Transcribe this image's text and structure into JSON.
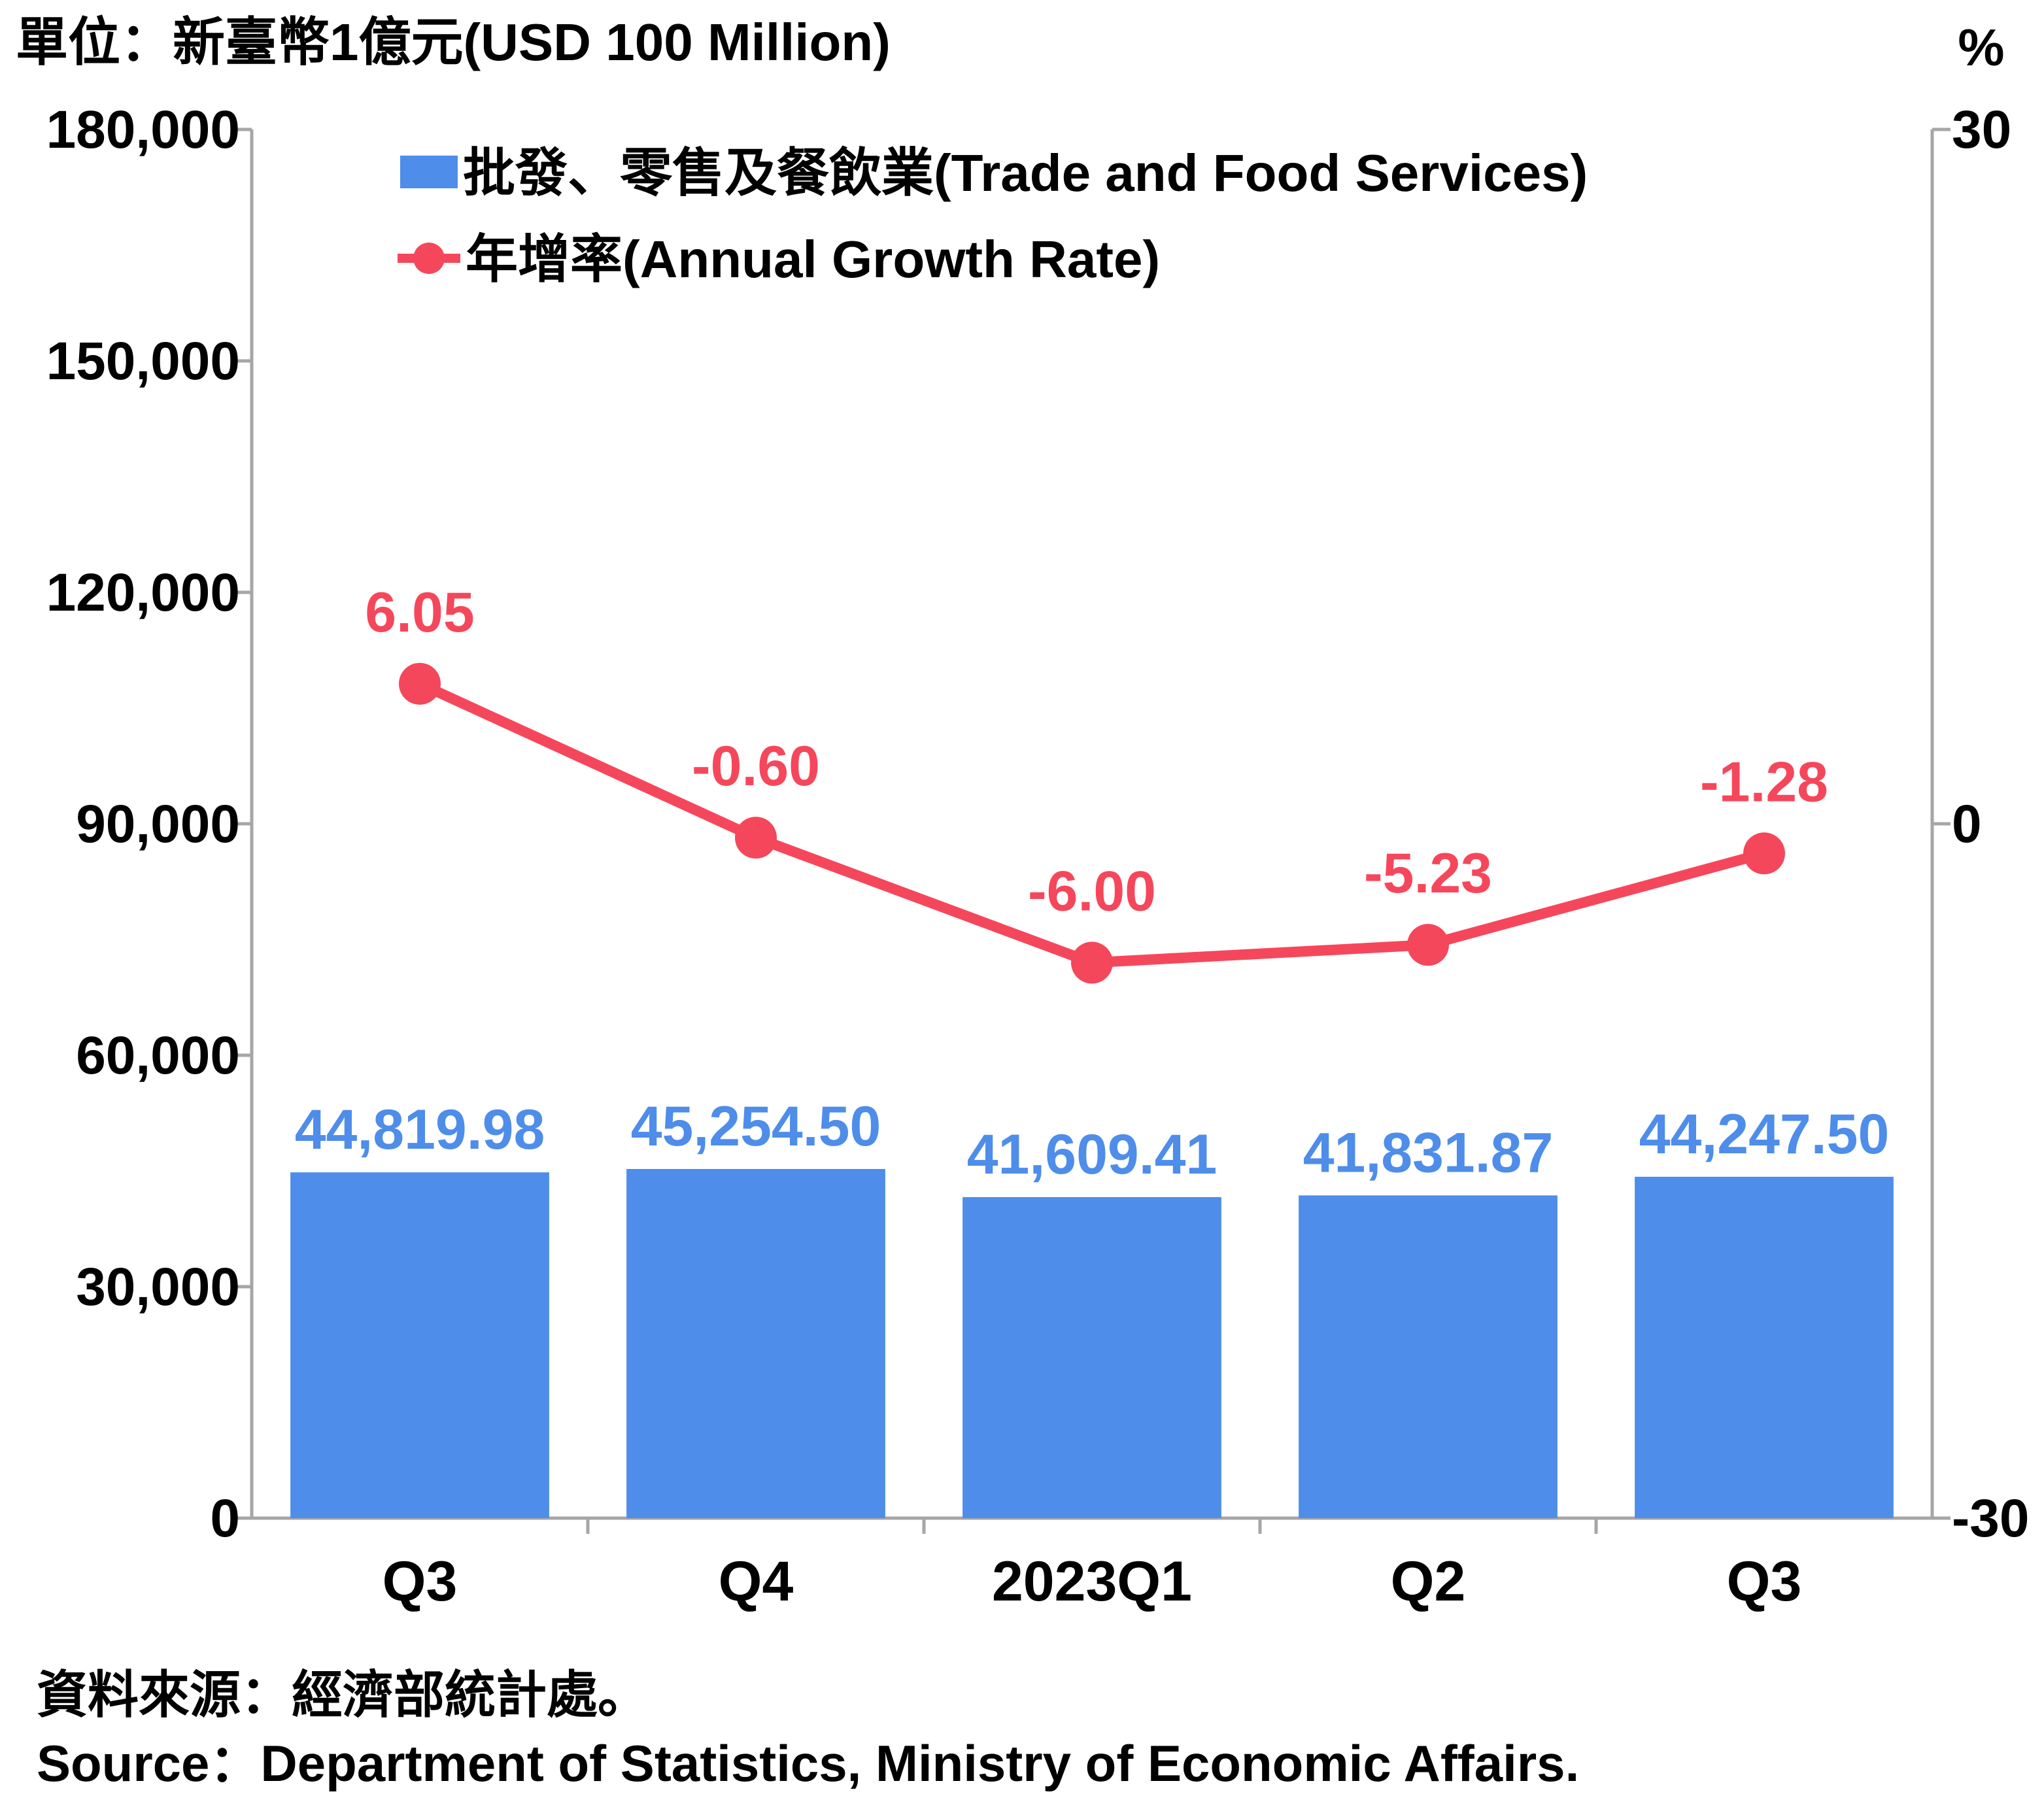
{
  "left_unit_label": "單位：新臺幣1億元(USD 100 Million)",
  "right_unit_label": "%",
  "chart_data": {
    "type": "bar+line",
    "title": "",
    "categories": [
      "Q3",
      "Q4",
      "2023Q1",
      "Q2",
      "Q3"
    ],
    "series": [
      {
        "name": "批發、零售及餐飲業(Trade and Food Services)",
        "type": "bar",
        "axis": "left",
        "color": "#4e8de9",
        "values": [
          44819.98,
          45254.5,
          41609.41,
          41831.87,
          44247.5
        ],
        "labels": [
          "44,819.98",
          "45,254.50",
          "41,609.41",
          "41,831.87",
          "44,247.50"
        ]
      },
      {
        "name": "年增率(Annual Growth Rate)",
        "type": "line",
        "axis": "right",
        "color": "#f5475b",
        "values": [
          6.05,
          -0.6,
          -6.0,
          -5.23,
          -1.28
        ],
        "labels": [
          "6.05",
          "-0.60",
          "-6.00",
          "-5.23",
          "-1.28"
        ]
      }
    ],
    "y_left": {
      "min": 0,
      "max": 180000,
      "ticks": [
        0,
        30000,
        60000,
        90000,
        120000,
        150000,
        180000
      ],
      "tick_labels": [
        "0",
        "30,000",
        "60,000",
        "90,000",
        "120,000",
        "150,000",
        "180,000"
      ]
    },
    "y_right": {
      "min": -30,
      "max": 30,
      "ticks": [
        -30,
        0,
        30
      ],
      "tick_labels": [
        "-30",
        "0",
        "30"
      ]
    },
    "grid": false,
    "legend_position": "top-center"
  },
  "source": {
    "zh": "資料來源：經濟部統計處。",
    "en": "Source：Department of Statistics, Ministry of Economic Affairs."
  }
}
